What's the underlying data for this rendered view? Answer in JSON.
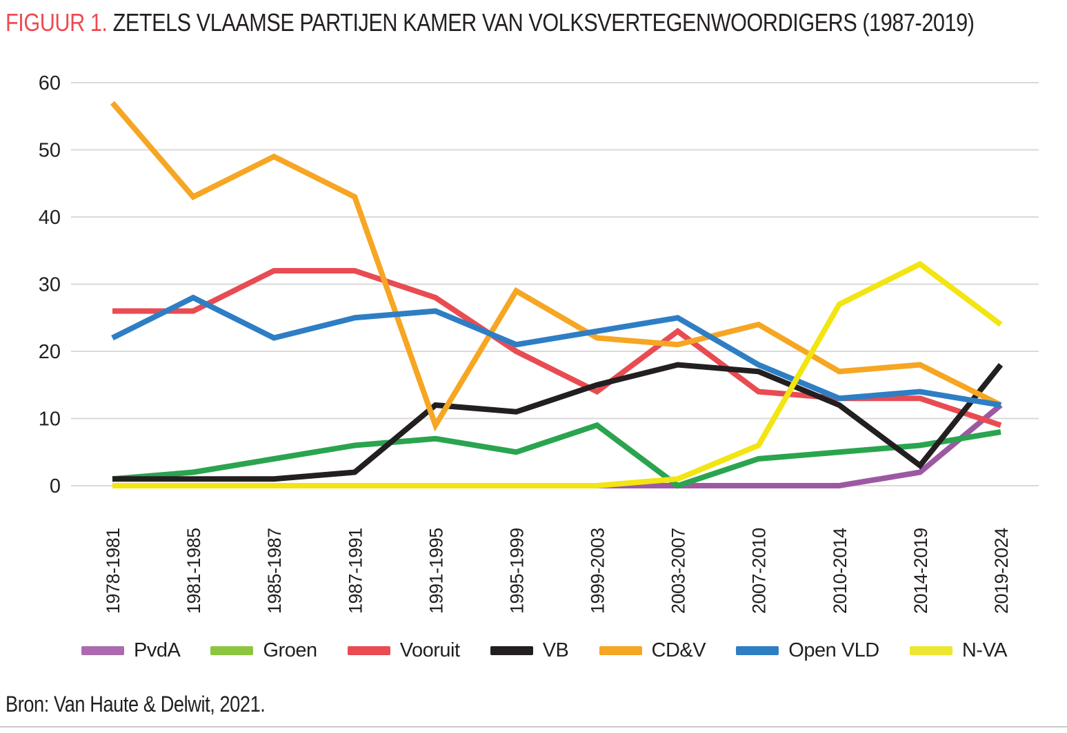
{
  "title": {
    "prefix": "FIGUUR 1.",
    "text": "ZETELS VLAAMSE PARTIJEN KAMER VAN VOLKSVERTEGENWOORDIGERS (1987-2019)"
  },
  "source": "Bron: Van Haute & Delwit, 2021.",
  "colors": {
    "grid": "#d9d9d9",
    "title_accent": "#ee4a50",
    "text": "#231f20",
    "bottom_rule": "#c9c9c9"
  },
  "chart_data": {
    "type": "line",
    "title": "FIGUUR 1. ZETELS VLAAMSE PARTIJEN KAMER VAN VOLKSVERTEGENWOORDIGERS (1987-2019)",
    "categories": [
      "1978-1981",
      "1981-1985",
      "1985-1987",
      "1987-1991",
      "1991-1995",
      "1995-1999",
      "1999-2003",
      "2003-2007",
      "2007-2010",
      "2010-2014",
      "2014-2019",
      "2019-2024"
    ],
    "series": [
      {
        "name": "PvdA",
        "color": "#9c59a2",
        "legend_color": "#ac6bae",
        "values": [
          0,
          0,
          0,
          0,
          0,
          0,
          0,
          0,
          0,
          0,
          2,
          12
        ]
      },
      {
        "name": "Groen",
        "color": "#2aa44f",
        "legend_color": "#8cc63f",
        "values": [
          1,
          2,
          4,
          6,
          7,
          5,
          9,
          0,
          4,
          5,
          6,
          8
        ]
      },
      {
        "name": "Vooruit",
        "color": "#e84c52",
        "legend_color": "#e84c52",
        "values": [
          26,
          26,
          32,
          32,
          28,
          20,
          14,
          23,
          14,
          13,
          13,
          9
        ]
      },
      {
        "name": "VB",
        "color": "#231f20",
        "legend_color": "#231f20",
        "values": [
          1,
          1,
          1,
          2,
          12,
          11,
          15,
          18,
          17,
          12,
          3,
          18
        ]
      },
      {
        "name": "CD&V",
        "color": "#f6a623",
        "legend_color": "#f6a623",
        "values": [
          57,
          43,
          49,
          43,
          9,
          29,
          22,
          21,
          24,
          17,
          18,
          12
        ]
      },
      {
        "name": "Open VLD",
        "color": "#2e7ec4",
        "legend_color": "#2e7ec4",
        "values": [
          22,
          28,
          22,
          25,
          26,
          21,
          23,
          25,
          18,
          13,
          14,
          12
        ]
      },
      {
        "name": "N-VA",
        "color": "#f2e511",
        "legend_color": "#ede731",
        "values": [
          0,
          0,
          0,
          0,
          0,
          0,
          0,
          1,
          6,
          27,
          33,
          24
        ]
      }
    ],
    "y_ticks": [
      0,
      10,
      20,
      30,
      40,
      50,
      60
    ],
    "ylim": [
      0,
      60
    ],
    "grid": true,
    "xlabel": "",
    "ylabel": "",
    "legend_position": "bottom"
  }
}
